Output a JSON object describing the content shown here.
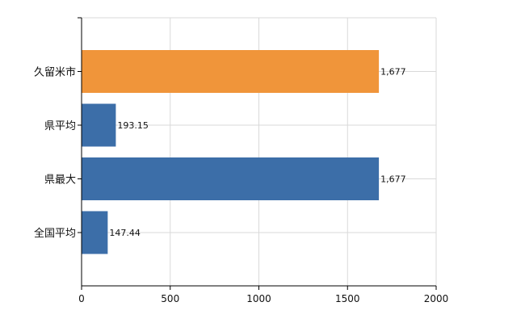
{
  "chart_data": {
    "type": "bar",
    "orientation": "horizontal",
    "categories": [
      "久留米市",
      "県平均",
      "県最大",
      "全国平均"
    ],
    "values": [
      1677,
      193.15,
      1677,
      147.44
    ],
    "value_labels": [
      "1,677",
      "193.15",
      "1,677",
      "147.44"
    ],
    "bar_colors": [
      "#f0953a",
      "#3c6ea8",
      "#3c6ea8",
      "#3c6ea8"
    ],
    "title": "",
    "xlabel": "",
    "ylabel": "",
    "xlim": [
      0,
      2000
    ],
    "x_ticks": [
      0,
      500,
      1000,
      1500,
      2000
    ],
    "x_tick_labels": [
      "0",
      "500",
      "1000",
      "1500",
      "2000"
    ],
    "grid": true,
    "legend": "none"
  }
}
